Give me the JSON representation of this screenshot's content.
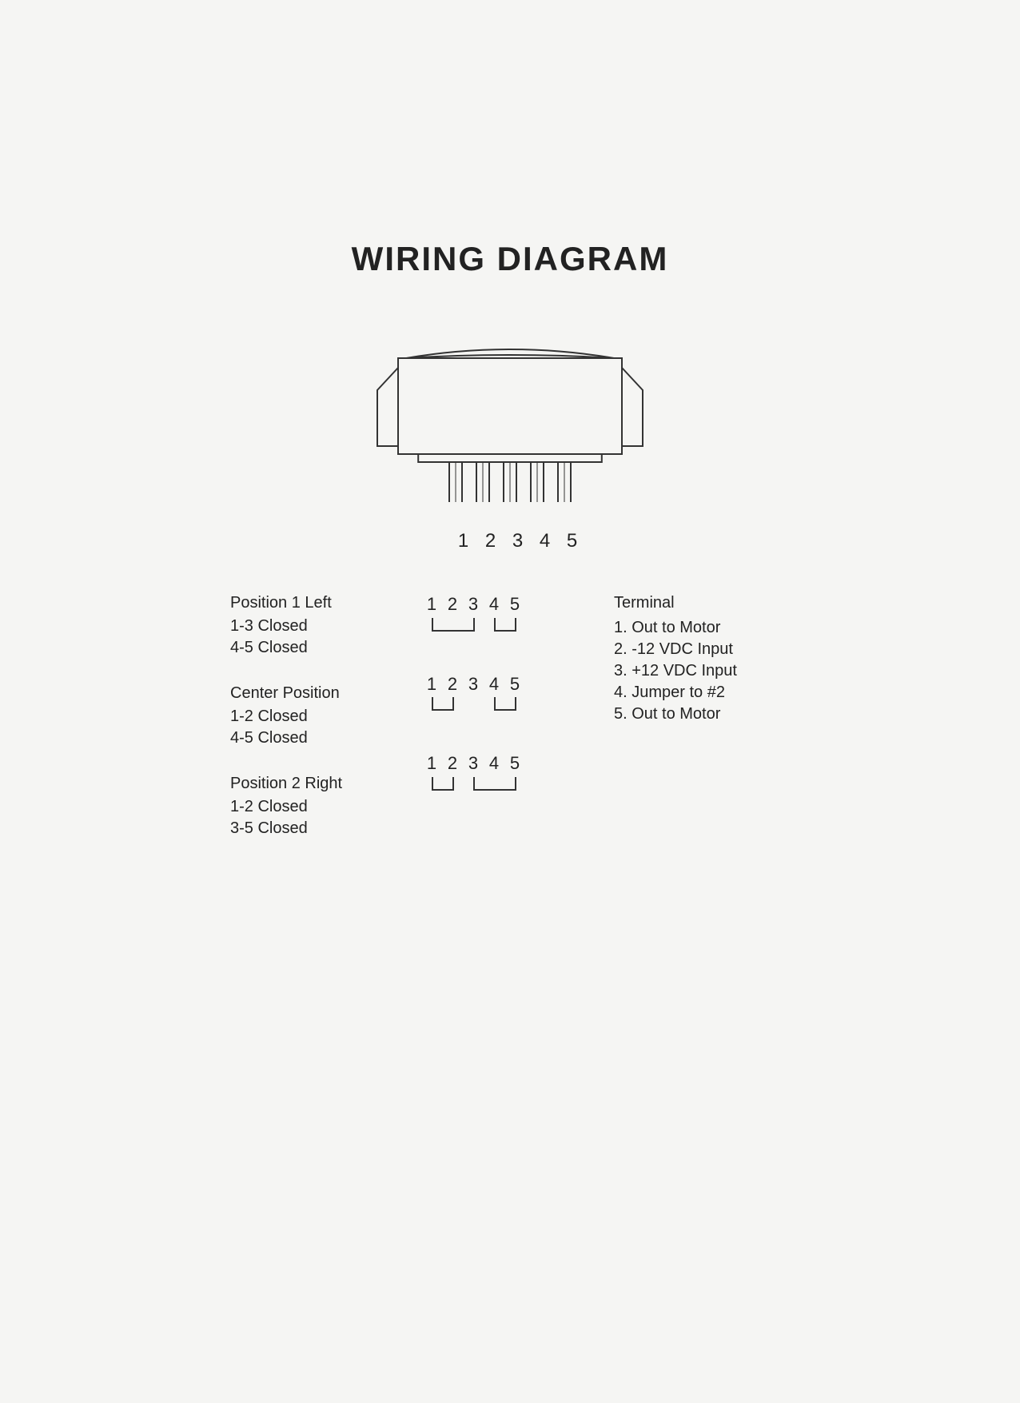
{
  "title": "WIRING DIAGRAM",
  "switch": {
    "pins": [
      "1",
      "2",
      "3",
      "4",
      "5"
    ],
    "stroke": "#333333",
    "stroke_width": 2,
    "body_width": 280,
    "body_height": 120,
    "pin_width": 16,
    "pin_height": 58,
    "pin_gap": 34,
    "background": "#f5f5f3"
  },
  "positions": [
    {
      "label": "Position 1 Left",
      "lines": [
        "1-3 Closed",
        "4-5 Closed"
      ],
      "numbers": [
        "1",
        "2",
        "3",
        "4",
        "5"
      ],
      "brackets": [
        {
          "from": 1,
          "to": 3
        },
        {
          "from": 4,
          "to": 5
        }
      ]
    },
    {
      "label": "Center Position",
      "lines": [
        "1-2 Closed",
        "4-5 Closed"
      ],
      "numbers": [
        "1",
        "2",
        "3",
        "4",
        "5"
      ],
      "brackets": [
        {
          "from": 1,
          "to": 2
        },
        {
          "from": 4,
          "to": 5
        }
      ]
    },
    {
      "label": "Position 2 Right",
      "lines": [
        "1-2 Closed",
        "3-5 Closed"
      ],
      "numbers": [
        "1",
        "2",
        "3",
        "4",
        "5"
      ],
      "brackets": [
        {
          "from": 1,
          "to": 2
        },
        {
          "from": 3,
          "to": 5
        }
      ]
    }
  ],
  "terminals": {
    "title": "Terminal",
    "items": [
      "1. Out to Motor",
      "2. -12 VDC Input",
      "3. +12 VDC Input",
      "4. Jumper to #2",
      "5. Out to Motor"
    ]
  },
  "style": {
    "text_color": "#222222",
    "bracket_color": "#333333",
    "bracket_stroke": 2,
    "num_cell_width": 26,
    "num_fontsize": 22,
    "label_fontsize": 20,
    "title_fontsize": 42
  }
}
